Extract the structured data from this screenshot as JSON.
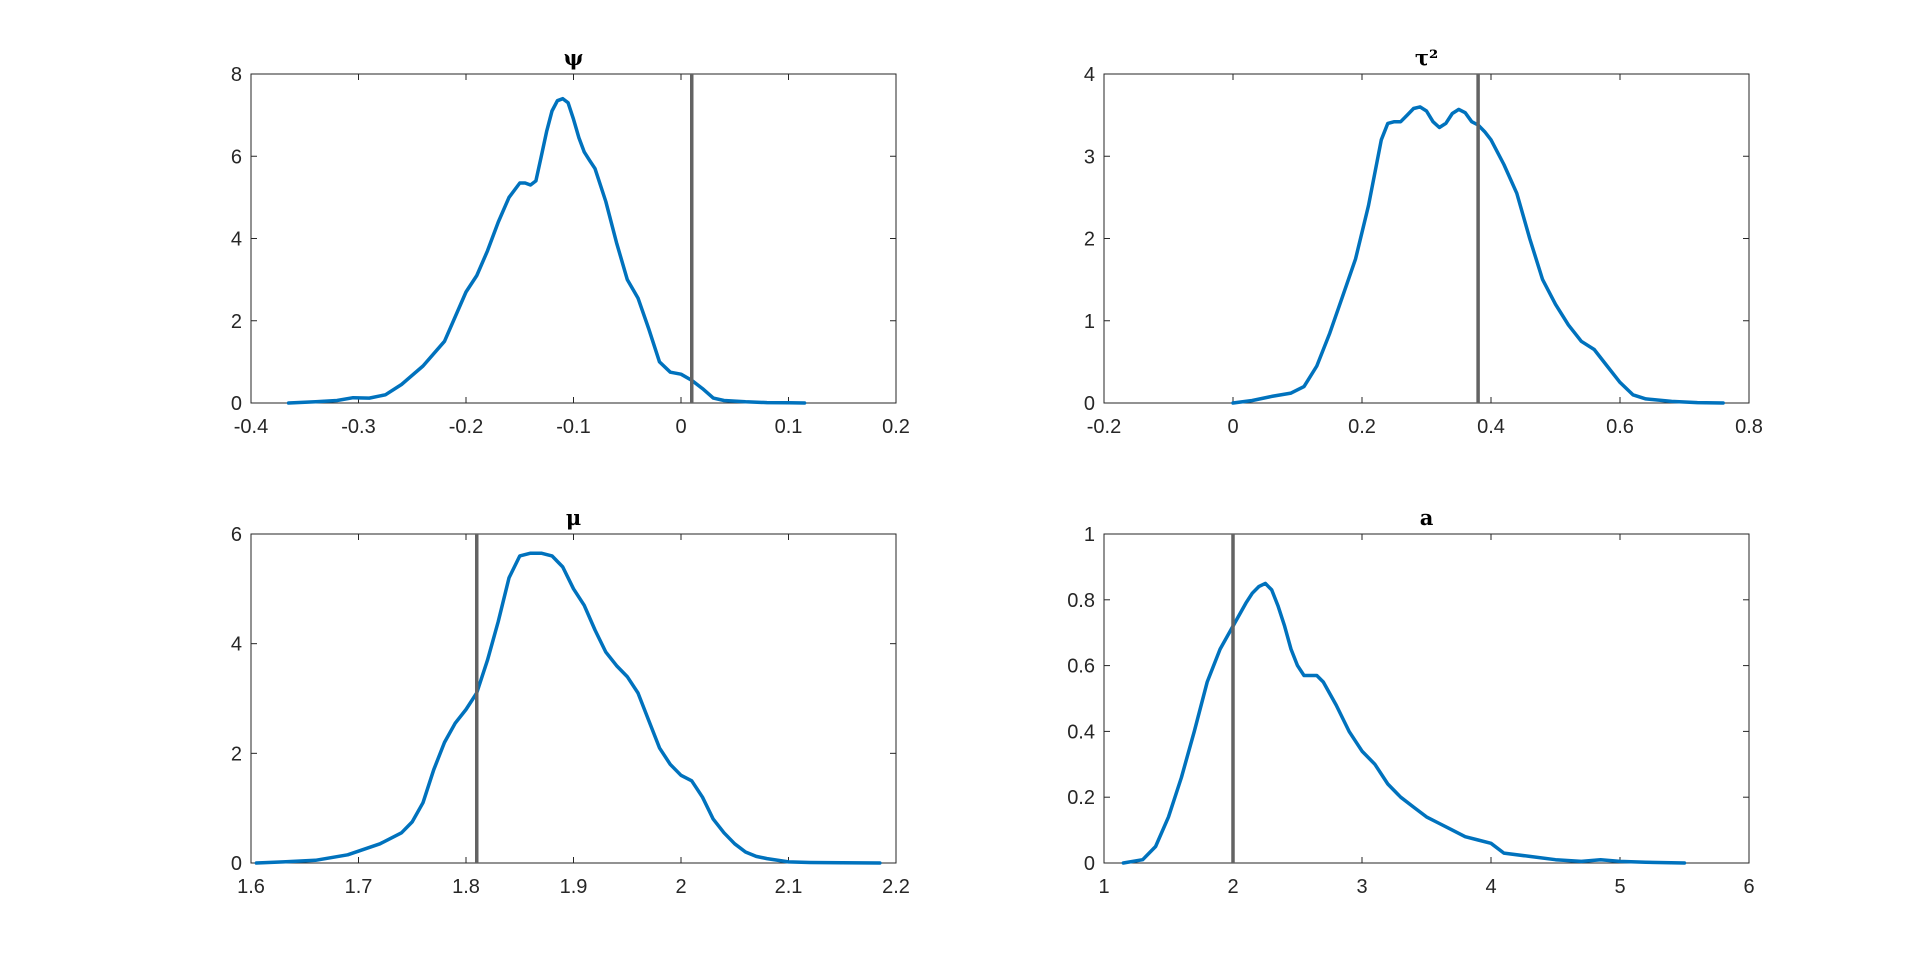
{
  "colors": {
    "density": "#0072BD",
    "reference": "#636363"
  },
  "chart_data": [
    {
      "type": "line",
      "title": "ψ",
      "xlabel": "",
      "ylabel": "",
      "xlim": [
        -0.4,
        0.2
      ],
      "ylim": [
        0,
        8
      ],
      "xticks": [
        -0.4,
        -0.3,
        -0.2,
        -0.1,
        0,
        0.1,
        0.2
      ],
      "xtick_labels": [
        "-0.4",
        "-0.3",
        "-0.2",
        "-0.1",
        "0",
        "0.1",
        "0.2"
      ],
      "yticks": [
        0,
        2,
        4,
        6,
        8
      ],
      "ytick_labels": [
        "0",
        "2",
        "4",
        "6",
        "8"
      ],
      "reference_x": 0.01,
      "series": [
        {
          "x": [
            -0.365,
            -0.34,
            -0.32,
            -0.305,
            -0.29,
            -0.275,
            -0.26,
            -0.24,
            -0.22,
            -0.2,
            -0.19,
            -0.18,
            -0.17,
            -0.16,
            -0.15,
            -0.145,
            -0.14,
            -0.135,
            -0.13,
            -0.125,
            -0.12,
            -0.115,
            -0.11,
            -0.105,
            -0.1,
            -0.095,
            -0.09,
            -0.085,
            -0.08,
            -0.07,
            -0.06,
            -0.05,
            -0.04,
            -0.03,
            -0.02,
            -0.01,
            0,
            0.01,
            0.02,
            0.03,
            0.04,
            0.06,
            0.08,
            0.1,
            0.115
          ],
          "y": [
            0,
            0.03,
            0.06,
            0.13,
            0.12,
            0.2,
            0.45,
            0.9,
            1.5,
            2.7,
            3.1,
            3.7,
            4.4,
            5.0,
            5.35,
            5.35,
            5.3,
            5.4,
            6.0,
            6.6,
            7.1,
            7.35,
            7.4,
            7.3,
            6.9,
            6.45,
            6.1,
            5.9,
            5.7,
            4.9,
            3.9,
            3.0,
            2.55,
            1.8,
            1.0,
            0.75,
            0.7,
            0.55,
            0.35,
            0.12,
            0.06,
            0.03,
            0.01,
            0.005,
            0
          ]
        }
      ]
    },
    {
      "type": "line",
      "title": "τ²",
      "xlabel": "",
      "ylabel": "",
      "xlim": [
        -0.2,
        0.8
      ],
      "ylim": [
        0,
        4
      ],
      "xticks": [
        -0.2,
        0,
        0.2,
        0.4,
        0.6,
        0.8
      ],
      "xtick_labels": [
        "-0.2",
        "0",
        "0.2",
        "0.4",
        "0.6",
        "0.8"
      ],
      "yticks": [
        0,
        1,
        2,
        3,
        4
      ],
      "ytick_labels": [
        "0",
        "1",
        "2",
        "3",
        "4"
      ],
      "reference_x": 0.38,
      "series": [
        {
          "x": [
            0,
            0.03,
            0.06,
            0.09,
            0.11,
            0.13,
            0.15,
            0.17,
            0.19,
            0.21,
            0.23,
            0.24,
            0.25,
            0.26,
            0.27,
            0.28,
            0.29,
            0.3,
            0.31,
            0.32,
            0.33,
            0.34,
            0.35,
            0.36,
            0.37,
            0.38,
            0.39,
            0.4,
            0.42,
            0.44,
            0.46,
            0.48,
            0.5,
            0.52,
            0.54,
            0.56,
            0.58,
            0.6,
            0.62,
            0.64,
            0.68,
            0.72,
            0.76
          ],
          "y": [
            0,
            0.03,
            0.08,
            0.12,
            0.2,
            0.45,
            0.85,
            1.3,
            1.75,
            2.4,
            3.2,
            3.4,
            3.42,
            3.42,
            3.5,
            3.58,
            3.6,
            3.55,
            3.42,
            3.35,
            3.4,
            3.52,
            3.57,
            3.53,
            3.42,
            3.38,
            3.3,
            3.2,
            2.9,
            2.55,
            2.0,
            1.5,
            1.2,
            0.95,
            0.75,
            0.65,
            0.45,
            0.25,
            0.1,
            0.05,
            0.02,
            0.005,
            0
          ]
        }
      ]
    },
    {
      "type": "line",
      "title": "μ",
      "xlabel": "",
      "ylabel": "",
      "xlim": [
        1.6,
        2.2
      ],
      "ylim": [
        0,
        6
      ],
      "xticks": [
        1.6,
        1.7,
        1.8,
        1.9,
        2.0,
        2.1,
        2.2
      ],
      "xtick_labels": [
        "1.6",
        "1.7",
        "1.8",
        "1.9",
        "2",
        "2.1",
        "2.2"
      ],
      "yticks": [
        0,
        2,
        4,
        6
      ],
      "ytick_labels": [
        "0",
        "2",
        "4",
        "6"
      ],
      "reference_x": 1.81,
      "series": [
        {
          "x": [
            1.605,
            1.63,
            1.66,
            1.69,
            1.72,
            1.74,
            1.75,
            1.76,
            1.77,
            1.78,
            1.79,
            1.8,
            1.81,
            1.82,
            1.83,
            1.84,
            1.85,
            1.86,
            1.87,
            1.88,
            1.89,
            1.9,
            1.91,
            1.92,
            1.93,
            1.94,
            1.95,
            1.96,
            1.97,
            1.98,
            1.99,
            2.0,
            2.01,
            2.02,
            2.03,
            2.04,
            2.05,
            2.06,
            2.07,
            2.08,
            2.1,
            2.12,
            2.15,
            2.185
          ],
          "y": [
            0,
            0.02,
            0.05,
            0.15,
            0.35,
            0.55,
            0.75,
            1.1,
            1.7,
            2.2,
            2.55,
            2.8,
            3.1,
            3.7,
            4.4,
            5.2,
            5.6,
            5.65,
            5.65,
            5.6,
            5.4,
            5.0,
            4.7,
            4.25,
            3.85,
            3.6,
            3.4,
            3.1,
            2.6,
            2.1,
            1.8,
            1.6,
            1.5,
            1.2,
            0.8,
            0.55,
            0.35,
            0.2,
            0.12,
            0.08,
            0.02,
            0.01,
            0.005,
            0
          ]
        }
      ]
    },
    {
      "type": "line",
      "title": "a",
      "xlabel": "",
      "ylabel": "",
      "xlim": [
        1,
        6
      ],
      "ylim": [
        0,
        1
      ],
      "xticks": [
        1,
        2,
        3,
        4,
        5,
        6
      ],
      "xtick_labels": [
        "1",
        "2",
        "3",
        "4",
        "5",
        "6"
      ],
      "yticks": [
        0,
        0.2,
        0.4,
        0.6,
        0.8,
        1
      ],
      "ytick_labels": [
        "0",
        "0.2",
        "0.4",
        "0.6",
        "0.8",
        "1"
      ],
      "reference_x": 2,
      "series": [
        {
          "x": [
            1.15,
            1.3,
            1.4,
            1.5,
            1.6,
            1.7,
            1.8,
            1.9,
            2.0,
            2.1,
            2.15,
            2.2,
            2.25,
            2.3,
            2.35,
            2.4,
            2.45,
            2.5,
            2.55,
            2.6,
            2.65,
            2.7,
            2.8,
            2.9,
            3.0,
            3.1,
            3.2,
            3.3,
            3.4,
            3.5,
            3.6,
            3.7,
            3.8,
            3.9,
            4.0,
            4.1,
            4.3,
            4.5,
            4.7,
            4.85,
            5.0,
            5.2,
            5.5
          ],
          "y": [
            0,
            0.01,
            0.05,
            0.14,
            0.26,
            0.4,
            0.55,
            0.65,
            0.72,
            0.79,
            0.82,
            0.84,
            0.85,
            0.83,
            0.78,
            0.72,
            0.65,
            0.6,
            0.57,
            0.57,
            0.57,
            0.55,
            0.48,
            0.4,
            0.34,
            0.3,
            0.24,
            0.2,
            0.17,
            0.14,
            0.12,
            0.1,
            0.08,
            0.07,
            0.06,
            0.03,
            0.02,
            0.01,
            0.005,
            0.01,
            0.005,
            0.002,
            0
          ]
        }
      ]
    }
  ]
}
